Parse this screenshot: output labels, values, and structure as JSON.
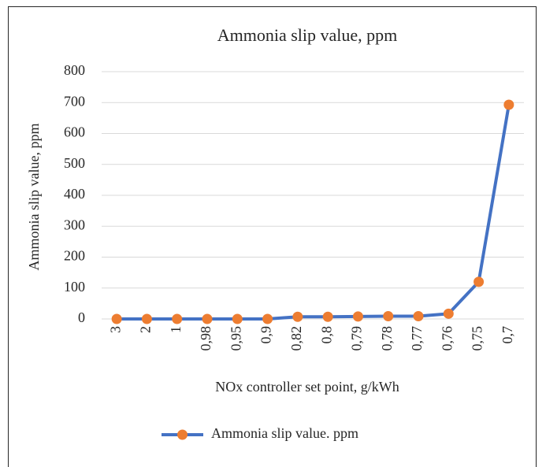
{
  "chart_data": {
    "type": "line",
    "title": "Ammonia slip value, ppm",
    "x_label": "NOx controller set point, g/kWh",
    "y_label": "Ammonia slip value, ppm",
    "categories": [
      "3",
      "2",
      "1",
      "0,98",
      "0,95",
      "0,9",
      "0,82",
      "0,8",
      "0,79",
      "0,78",
      "0,77",
      "0,76",
      "0,75",
      "0,7"
    ],
    "series": [
      {
        "name": "Ammonia slip value. ppm",
        "color": "#4472c4",
        "marker_color": "#ed7d31",
        "values": [
          0,
          0,
          0,
          0,
          0,
          0,
          7,
          7,
          8,
          9,
          9,
          17,
          120,
          693
        ]
      }
    ],
    "ylim": [
      0,
      800
    ],
    "yticks": [
      0,
      100,
      200,
      300,
      400,
      500,
      600,
      700,
      800
    ],
    "grid": true,
    "legend": "bottom"
  }
}
